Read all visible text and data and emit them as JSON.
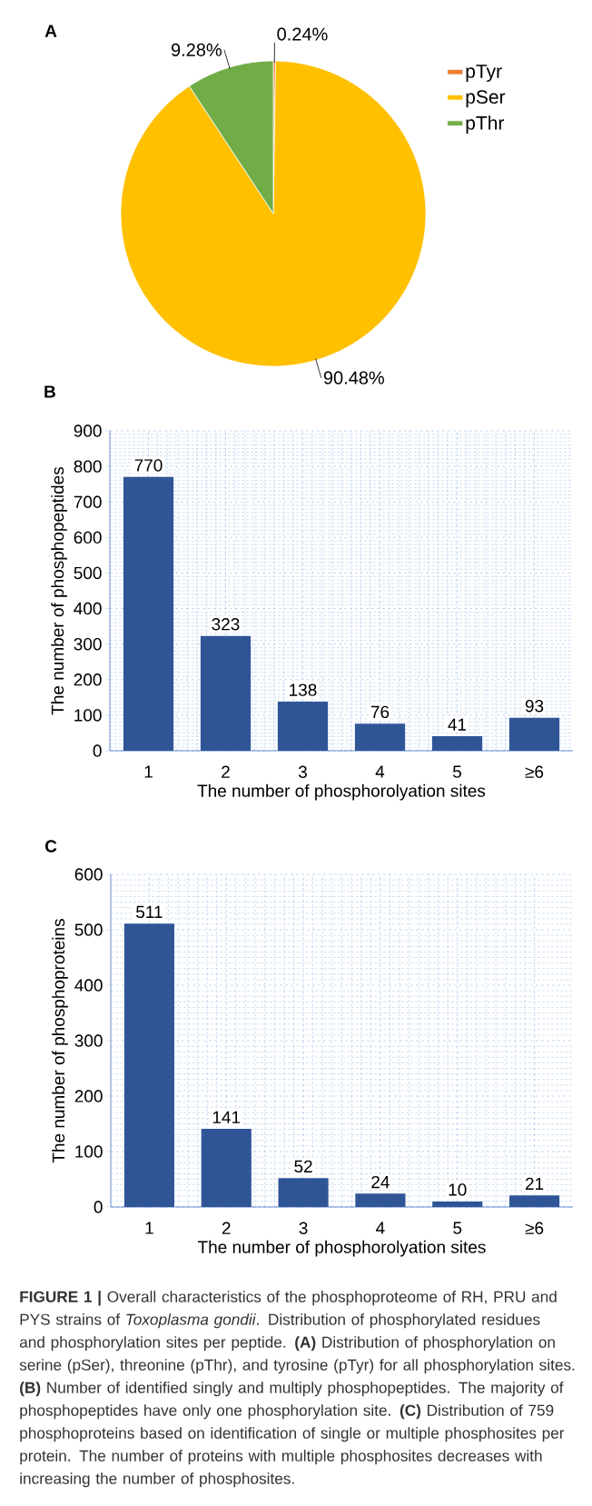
{
  "chart_data": [
    {
      "type": "pie",
      "title": "A",
      "categories": [
        "pTyr",
        "pSer",
        "pThr"
      ],
      "values": [
        0.24,
        90.48,
        9.28
      ],
      "colors": [
        "#ed7d31",
        "#ffc000",
        "#70ad47"
      ],
      "value_labels": [
        "0.24%",
        "90.48%",
        "9.28%"
      ],
      "legend": "top right"
    },
    {
      "type": "bar",
      "title": "B",
      "categories": [
        "1",
        "2",
        "3",
        "4",
        "5",
        "≥6"
      ],
      "values": [
        770,
        323,
        138,
        76,
        41,
        93
      ],
      "color": "#2f5597",
      "xlabel": "The number of phosphorolyation sites",
      "ylabel": "The number of phosphopeptides",
      "ylim": [
        0,
        900
      ],
      "yticks": [
        0,
        100,
        200,
        300,
        400,
        500,
        600,
        700,
        800,
        900
      ],
      "grid": true,
      "data_labels": true
    },
    {
      "type": "bar",
      "title": "C",
      "categories": [
        "1",
        "2",
        "3",
        "4",
        "5",
        "≥6"
      ],
      "values": [
        511,
        141,
        52,
        24,
        10,
        21
      ],
      "color": "#2f5597",
      "xlabel": "The number of phosphorolyation sites",
      "ylabel": "The number of phosphoproteins",
      "ylim": [
        0,
        600
      ],
      "yticks": [
        0,
        100,
        200,
        300,
        400,
        500,
        600
      ],
      "grid": true,
      "data_labels": true,
      "annotations": [
        "**FIGURE 1 |** Overall characteristics of the phosphoproteome of RH, PRU and PYS strains of *Toxoplasma gondii*. Distribution of phosphorylated residues and phosphorylation sites per peptide. **(A)** Distribution of phosphorylation on serine (pSer), threonine (pThr), and tyrosine (pTyr) for all phosphorylation sites. **(B)** Number of identified singly and multiply phosphopeptides. The majority of phosphopeptides have only one phosphorylation site. **(C)** Distribution of 759 phosphoproteins based on identification of single or multiple phosphosites per protein. The number of proteins with multiple phosphosites decreases with increasing the number of phosphosites."
      ]
    }
  ]
}
